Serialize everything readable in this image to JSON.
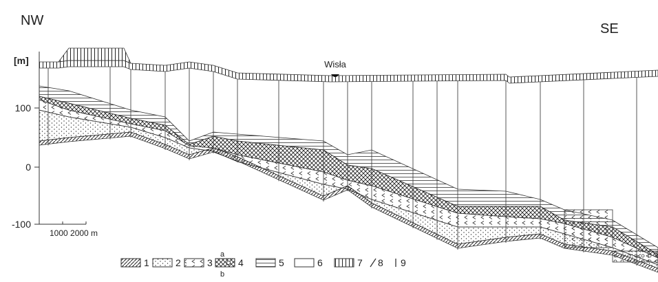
{
  "header": {
    "left": "NW",
    "right": "SE"
  },
  "axis": {
    "unit": "[m]",
    "ticks": [
      "100",
      "0",
      "-100"
    ],
    "scale": "1000 2000 m"
  },
  "annotations": {
    "river": "Wisła"
  },
  "legend": {
    "items": [
      "1",
      "2",
      "3",
      "4",
      "5",
      "6",
      "7",
      "8",
      "9"
    ],
    "sub": [
      "a",
      "b"
    ]
  }
}
